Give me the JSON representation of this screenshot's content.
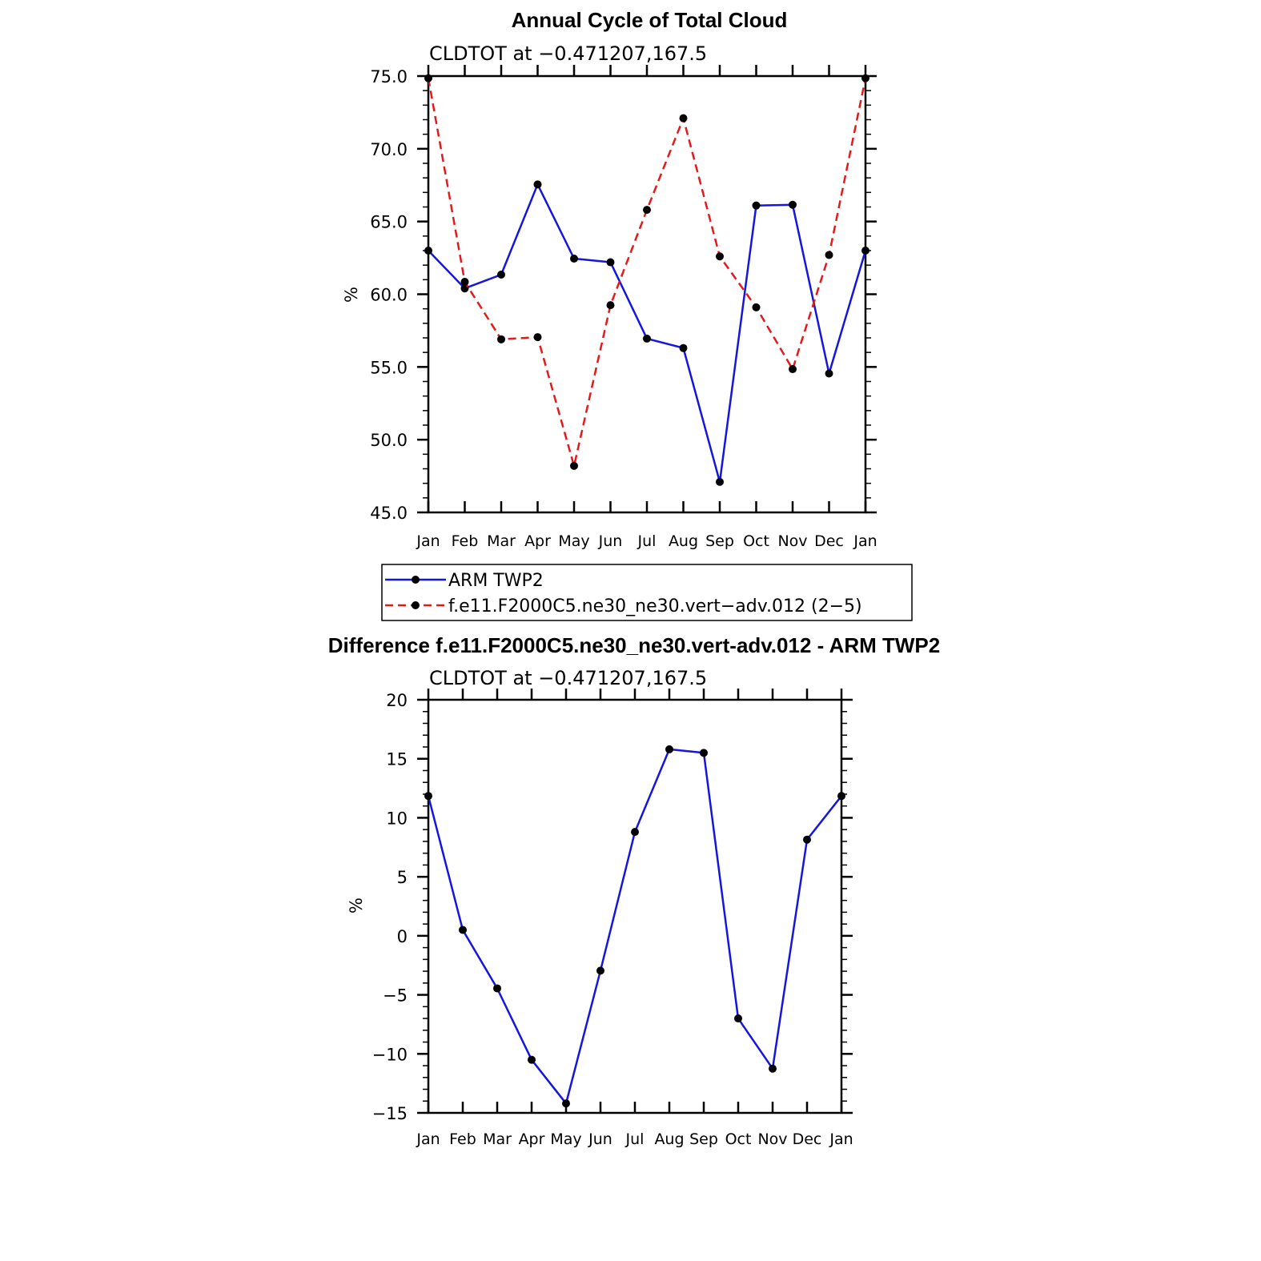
{
  "chart_data": [
    {
      "type": "line",
      "title": "Annual Cycle of Total Cloud",
      "subtitle": "CLDTOT at −0.471207,167.5",
      "ylabel": "%",
      "ylim": [
        45,
        75
      ],
      "yticks": [
        "45.0",
        "50.0",
        "55.0",
        "60.0",
        "65.0",
        "70.0",
        "75.0"
      ],
      "categories": [
        "Jan",
        "Feb",
        "Mar",
        "Apr",
        "May",
        "Jun",
        "Jul",
        "Aug",
        "Sep",
        "Oct",
        "Nov",
        "Dec",
        "Jan"
      ],
      "series": [
        {
          "name": "ARM TWP2",
          "color": "#1515e0",
          "dash": "solid",
          "values": [
            63.0,
            60.4,
            61.35,
            67.55,
            62.45,
            62.2,
            56.95,
            56.3,
            47.1,
            66.1,
            66.15,
            54.55,
            63.0
          ]
        },
        {
          "name": "f.e11.F2000C5.ne30_ne30.vert−adv.012 (2−5)",
          "color": "#e31a1c",
          "dash": "dashed",
          "values": [
            74.85,
            60.85,
            56.9,
            57.05,
            48.2,
            59.25,
            65.8,
            72.1,
            62.6,
            59.1,
            54.85,
            62.7,
            74.85
          ]
        }
      ],
      "legend": "below"
    },
    {
      "type": "line",
      "title": "Difference f.e11.F2000C5.ne30_ne30.vert-adv.012 - ARM TWP2",
      "subtitle": "CLDTOT at −0.471207,167.5",
      "ylabel": "%",
      "ylim": [
        -15,
        20
      ],
      "yticks": [
        "−15",
        "−10",
        "−5",
        "0",
        "5",
        "10",
        "15",
        "20"
      ],
      "categories": [
        "Jan",
        "Feb",
        "Mar",
        "Apr",
        "May",
        "Jun",
        "Jul",
        "Aug",
        "Sep",
        "Oct",
        "Nov",
        "Dec",
        "Jan"
      ],
      "series": [
        {
          "color": "#1515e0",
          "dash": "solid",
          "values": [
            11.85,
            0.5,
            -4.45,
            -10.5,
            -14.2,
            -2.95,
            8.8,
            15.8,
            15.5,
            -7.0,
            -11.25,
            8.15,
            11.85
          ]
        }
      ]
    }
  ]
}
